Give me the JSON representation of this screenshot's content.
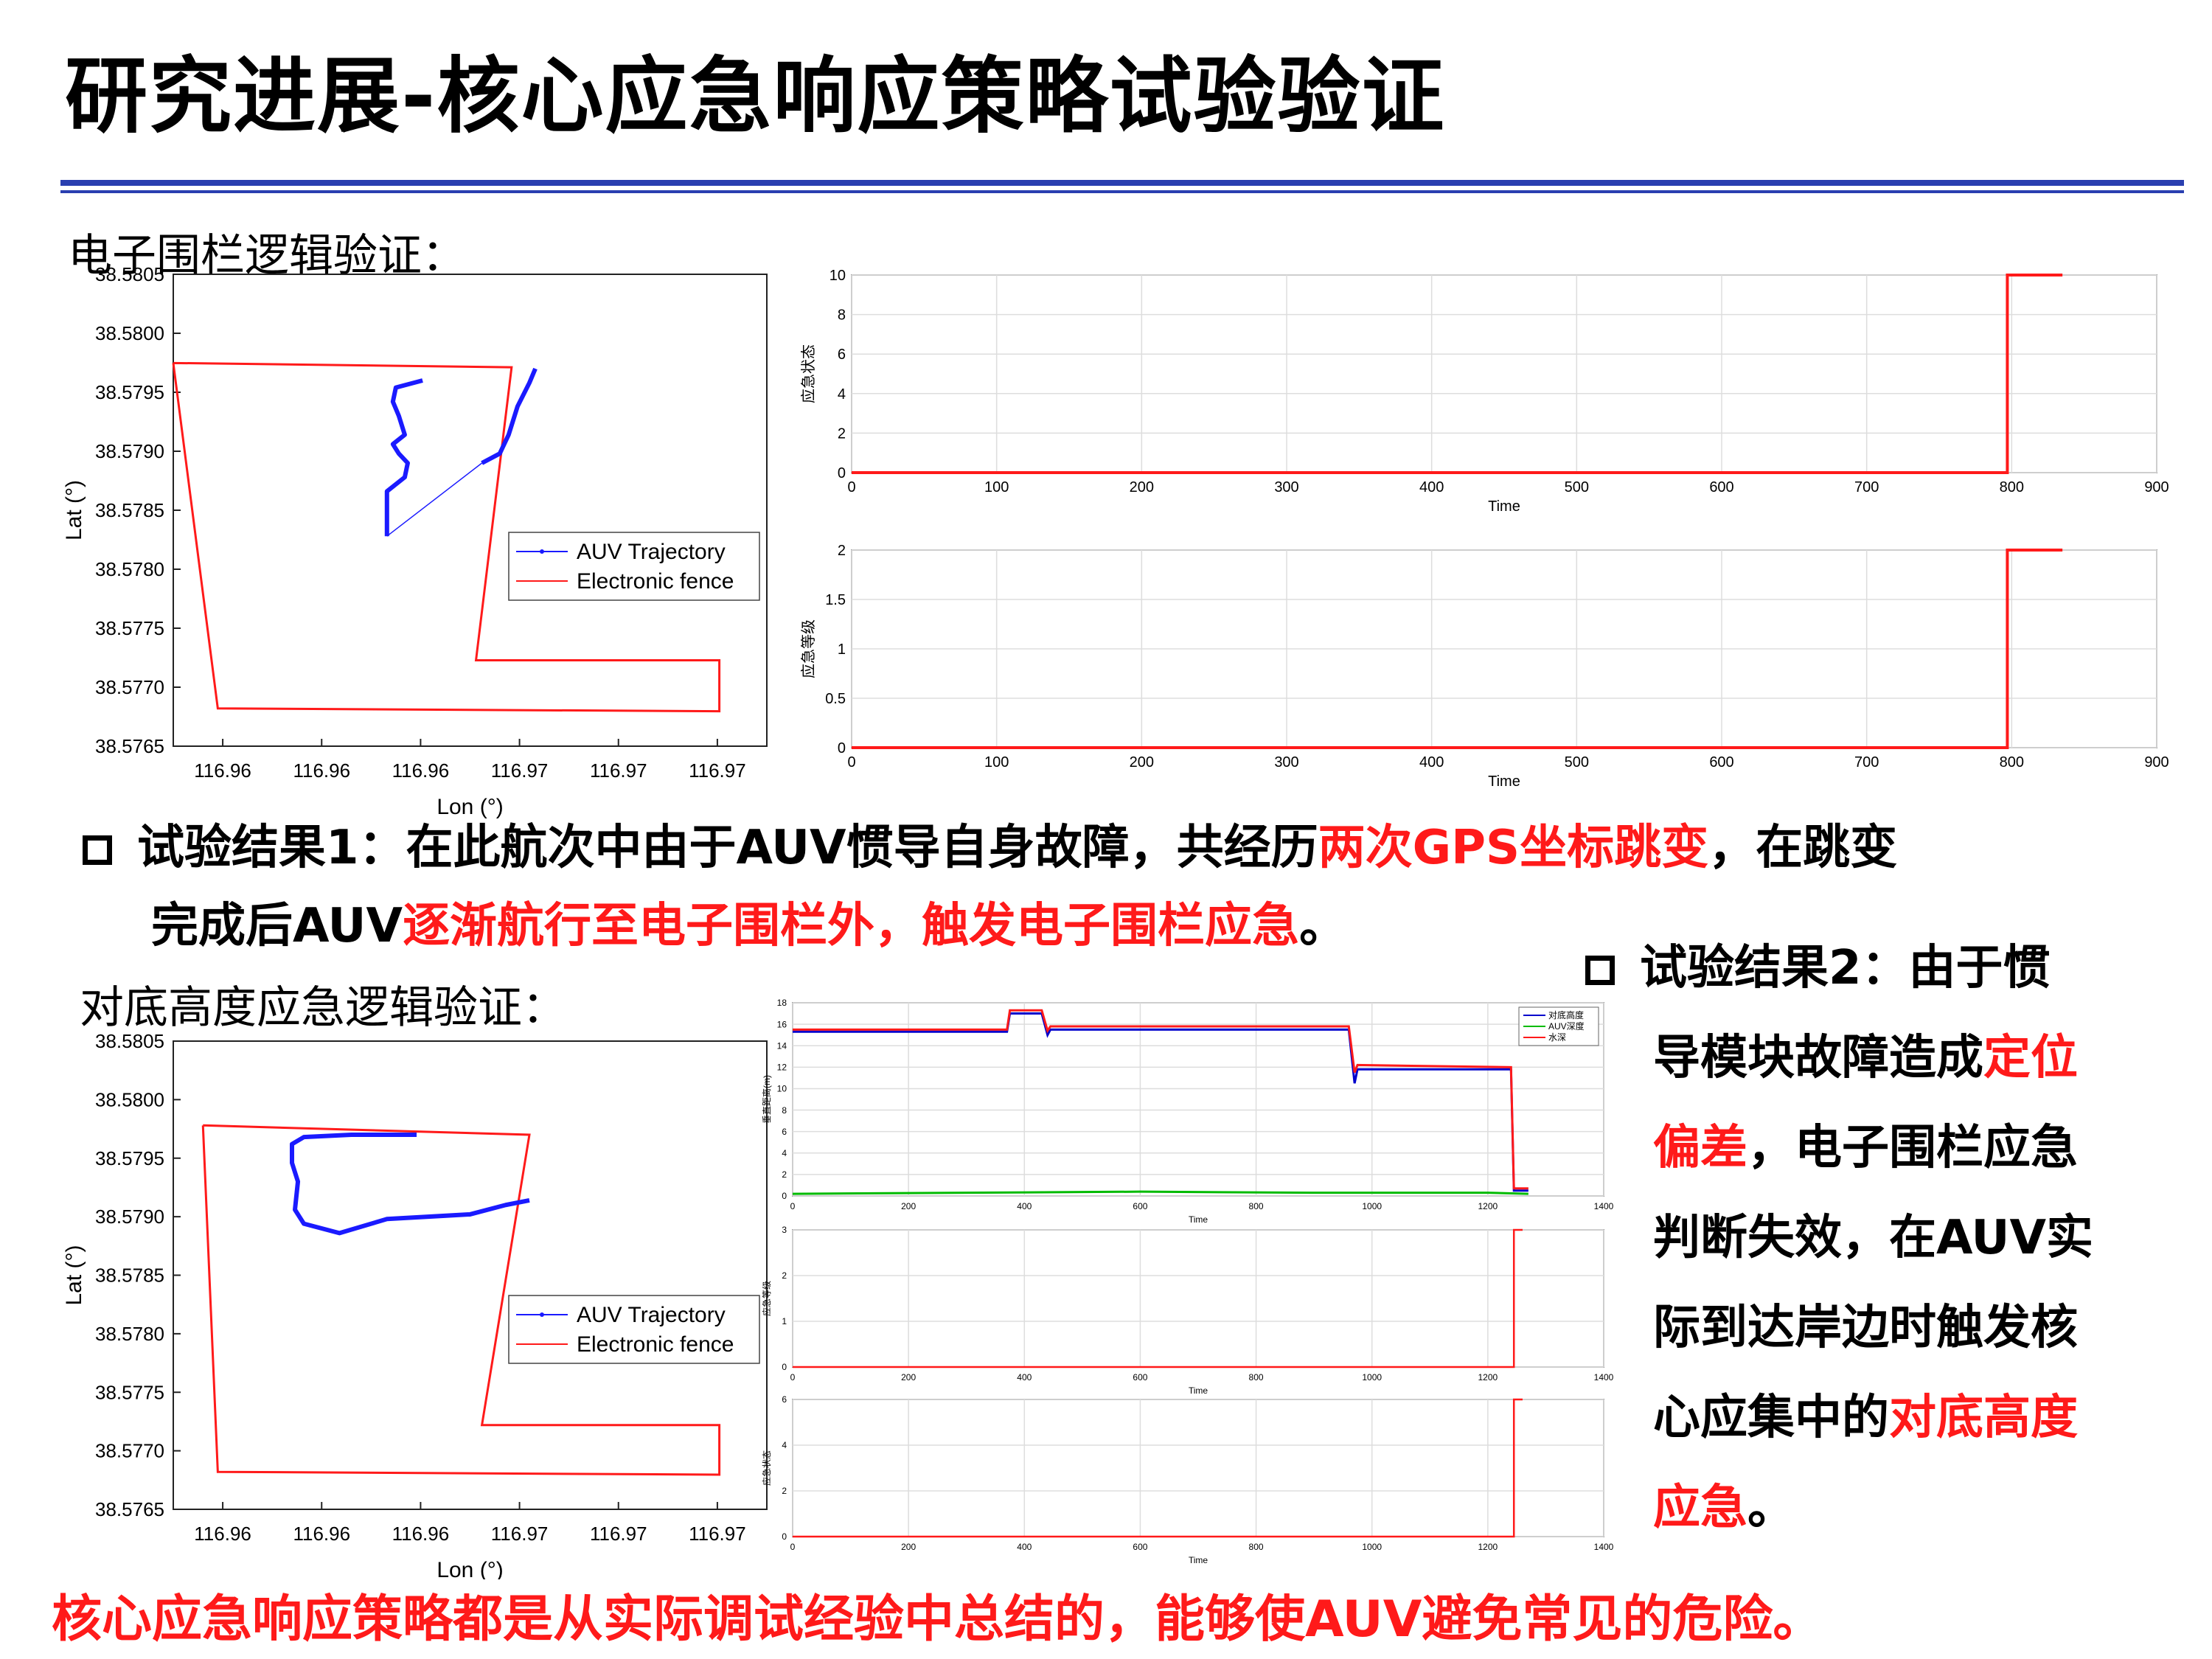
{
  "title": "研究进展-核心应急响应策略试验验证",
  "section1": "电子围栏逻辑验证：",
  "section2": "对底高度应急逻辑验证：",
  "result1": {
    "prefix": "试验结果1：在此航次中由于AUV惯导自身故障，共经历",
    "red1": "两次GPS坐标跳变",
    "mid": "，在跳变",
    "line2_start": "完成后AUV",
    "red2": "逐渐航行至电子围栏外，触发电子围栏应急",
    "end": "。"
  },
  "result2": {
    "l1": "试验结果2：由于惯",
    "l2a": "导模块故障造成",
    "l2b": "定位",
    "l3a": "偏差",
    "l3b": "，电子围栏应急",
    "l4": "判断失效，在AUV实",
    "l5": "际到达岸边时触发核",
    "l6a": "心应集中的",
    "l6b": "对底高度",
    "l7a": "应急",
    "l7b": "。"
  },
  "bottom_note": "核心应急响应策略都是从实际调试经验中总结的，能够使AUV避免常见的危险。",
  "colors": {
    "accent_blue": "#2a3fb0",
    "red": "#ff1a1a",
    "trajectory": "#1a1aff",
    "green": "#00bb00"
  },
  "chart_data": [
    {
      "id": "map1",
      "type": "line",
      "xlabel": "Lon (°)",
      "ylabel": "Lat (°)",
      "yticks": [
        "38.5805",
        "38.5800",
        "38.5795",
        "38.5790",
        "38.5785",
        "38.5780",
        "38.5775",
        "38.5770",
        "38.5765"
      ],
      "xticks": [
        "116.96",
        "116.96",
        "116.96",
        "116.97",
        "116.97",
        "116.97"
      ],
      "legend": [
        "AUV Trajectory",
        "Electronic fence"
      ],
      "fence": [
        [
          0,
          0.812
        ],
        [
          0.57,
          0.803
        ],
        [
          0.51,
          0.182
        ],
        [
          0.92,
          0.182
        ],
        [
          0.92,
          0.074
        ],
        [
          0.075,
          0.08
        ],
        [
          0,
          0.812
        ]
      ],
      "trajectory": [
        [
          0.36,
          0.445
        ],
        [
          0.36,
          0.54
        ],
        [
          0.39,
          0.57
        ],
        [
          0.395,
          0.6
        ],
        [
          0.38,
          0.62
        ],
        [
          0.37,
          0.64
        ],
        [
          0.39,
          0.66
        ],
        [
          0.38,
          0.7
        ],
        [
          0.37,
          0.73
        ],
        [
          0.375,
          0.76
        ],
        [
          0.42,
          0.775
        ]
      ],
      "trajectory_b": [
        [
          0.52,
          0.6
        ],
        [
          0.55,
          0.62
        ],
        [
          0.565,
          0.66
        ],
        [
          0.58,
          0.72
        ],
        [
          0.6,
          0.77
        ],
        [
          0.61,
          0.8
        ]
      ],
      "jump": [
        [
          0.36,
          0.445
        ],
        [
          0.52,
          0.6
        ]
      ]
    },
    {
      "id": "state1",
      "type": "line",
      "xlabel": "Time",
      "ylabel": "应急状态",
      "xlim": [
        0,
        900
      ],
      "ylim": [
        0,
        10
      ],
      "xticks": [
        0,
        100,
        200,
        300,
        400,
        500,
        600,
        700,
        800,
        900
      ],
      "yticks": [
        0,
        2,
        4,
        6,
        8,
        10
      ],
      "series": [
        {
          "name": "state",
          "x": [
            0,
            797,
            797,
            835
          ],
          "y": [
            0,
            0,
            10,
            10
          ]
        }
      ]
    },
    {
      "id": "level1",
      "type": "line",
      "xlabel": "Time",
      "ylabel": "应急等级",
      "xlim": [
        0,
        900
      ],
      "ylim": [
        0,
        2
      ],
      "xticks": [
        0,
        100,
        200,
        300,
        400,
        500,
        600,
        700,
        800,
        900
      ],
      "yticks": [
        0,
        0.5,
        1,
        1.5,
        2
      ],
      "series": [
        {
          "name": "level",
          "x": [
            0,
            797,
            797,
            835
          ],
          "y": [
            0,
            0,
            2,
            2
          ]
        }
      ]
    },
    {
      "id": "map2",
      "type": "line",
      "xlabel": "Lon (°)",
      "ylabel": "Lat (°)",
      "yticks": [
        "38.5805",
        "38.5800",
        "38.5795",
        "38.5790",
        "38.5785",
        "38.5780",
        "38.5775",
        "38.5770",
        "38.5765"
      ],
      "xticks": [
        "116.96",
        "116.96",
        "116.96",
        "116.97",
        "116.97",
        "116.97"
      ],
      "legend": [
        "AUV Trajectory",
        "Electronic fence"
      ],
      "fence": [
        [
          0.05,
          0.82
        ],
        [
          0.6,
          0.8
        ],
        [
          0.52,
          0.18
        ],
        [
          0.92,
          0.18
        ],
        [
          0.92,
          0.074
        ],
        [
          0.075,
          0.08
        ],
        [
          0.05,
          0.82
        ]
      ],
      "trajectory": [
        [
          0.41,
          0.8
        ],
        [
          0.3,
          0.8
        ],
        [
          0.22,
          0.795
        ],
        [
          0.2,
          0.78
        ],
        [
          0.2,
          0.74
        ],
        [
          0.21,
          0.7
        ],
        [
          0.205,
          0.64
        ],
        [
          0.22,
          0.61
        ],
        [
          0.28,
          0.59
        ],
        [
          0.36,
          0.62
        ],
        [
          0.5,
          0.63
        ],
        [
          0.56,
          0.65
        ],
        [
          0.6,
          0.66
        ]
      ]
    },
    {
      "id": "height2",
      "type": "line",
      "xlabel": "Time",
      "ylabel": "垂直距离(m)",
      "xlim": [
        0,
        1400
      ],
      "ylim": [
        0,
        18
      ],
      "xticks": [
        0,
        200,
        400,
        600,
        800,
        1000,
        1200,
        1400
      ],
      "yticks": [
        0,
        2,
        4,
        6,
        8,
        10,
        12,
        14,
        16,
        18
      ],
      "legend": [
        "对底高度",
        "AUV深度",
        "水深"
      ],
      "series": [
        {
          "name": "对底高度",
          "color": "#0000cc",
          "x": [
            0,
            370,
            375,
            430,
            440,
            445,
            960,
            970,
            975,
            1240,
            1245,
            1270
          ],
          "y": [
            15.3,
            15.3,
            17,
            17,
            15,
            15.5,
            15.5,
            10.5,
            11.8,
            11.8,
            0.5,
            0.5
          ]
        },
        {
          "name": "AUV深度",
          "color": "#00bb00",
          "x": [
            0,
            300,
            600,
            900,
            1200,
            1270
          ],
          "y": [
            0.2,
            0.3,
            0.4,
            0.3,
            0.3,
            0.2
          ]
        },
        {
          "name": "水深",
          "color": "#ff1a1a",
          "x": [
            0,
            370,
            375,
            430,
            440,
            445,
            960,
            970,
            975,
            1240,
            1245,
            1270
          ],
          "y": [
            15.5,
            15.5,
            17.3,
            17.3,
            15.4,
            15.8,
            15.8,
            11.5,
            12.2,
            12,
            0.7,
            0.7
          ]
        }
      ]
    },
    {
      "id": "level2",
      "type": "line",
      "xlabel": "Time",
      "ylabel": "应急等级",
      "xlim": [
        0,
        1400
      ],
      "ylim": [
        0,
        3
      ],
      "xticks": [
        0,
        200,
        400,
        600,
        800,
        1000,
        1200,
        1400
      ],
      "yticks": [
        0,
        1,
        2,
        3
      ],
      "series": [
        {
          "name": "level",
          "x": [
            0,
            1245,
            1245,
            1260
          ],
          "y": [
            0,
            0,
            3,
            3
          ]
        }
      ]
    },
    {
      "id": "state2",
      "type": "line",
      "xlabel": "Time",
      "ylabel": "应急状态",
      "xlim": [
        0,
        1400
      ],
      "ylim": [
        0,
        6
      ],
      "xticks": [
        0,
        200,
        400,
        600,
        800,
        1000,
        1200,
        1400
      ],
      "yticks": [
        0,
        2,
        4,
        6
      ],
      "series": [
        {
          "name": "state",
          "x": [
            0,
            1245,
            1245,
            1260
          ],
          "y": [
            0,
            0,
            6,
            6
          ]
        }
      ]
    }
  ]
}
